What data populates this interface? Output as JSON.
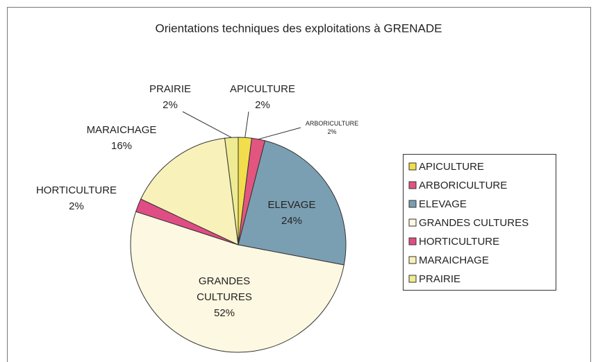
{
  "chart_data": {
    "type": "pie",
    "title": "Orientations techniques des exploitations à GRENADE",
    "categories": [
      "APICULTURE",
      "ARBORICULTURE",
      "ELEVAGE",
      "GRANDES CULTURES",
      "HORTICULTURE",
      "MARAICHAGE",
      "PRAIRIE"
    ],
    "values": [
      2,
      2,
      24,
      52,
      2,
      16,
      2
    ],
    "value_labels": [
      "2%",
      "2%",
      "24%",
      "52%",
      "2%",
      "16%",
      "2%"
    ],
    "colors": [
      "#f2de4c",
      "#e2557f",
      "#7b9fb2",
      "#fdf8e2",
      "#e04d84",
      "#f9f1ba",
      "#efeb92"
    ],
    "legend": "right"
  }
}
